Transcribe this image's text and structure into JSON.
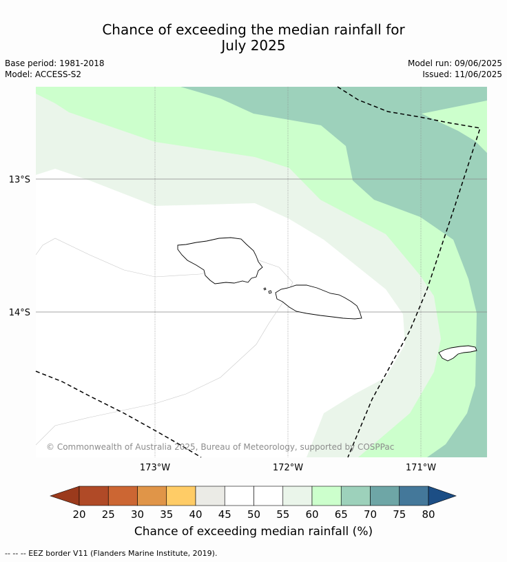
{
  "title": {
    "line1": "Chance of exceeding the median rainfall for",
    "line2": "July 2025"
  },
  "meta": {
    "base_period": "Base period: 1981-2018",
    "model": "Model: ACCESS-S2",
    "model_run": "Model run: 09/06/2025",
    "issued": "Issued: 11/06/2025"
  },
  "map": {
    "lat_labels": [
      "13°S",
      "14°S"
    ],
    "lon_labels": [
      "173°W",
      "172°W",
      "171°W"
    ],
    "copyright": "© Commonwealth of Australia 2025, Bureau of Meteorology, supported by COSPPac",
    "colors": {
      "c55_60": "#eaf5ea",
      "c60_65": "#ccffcc",
      "c65_70": "#9dd1bb",
      "background": "#ffffff"
    }
  },
  "colorbar": {
    "ticks": [
      "20",
      "25",
      "30",
      "35",
      "40",
      "45",
      "50",
      "55",
      "60",
      "65",
      "70",
      "75",
      "80"
    ],
    "colors": [
      "#b04a27",
      "#cc6633",
      "#e09548",
      "#ffcc66",
      "#ebebe6",
      "#ffffff",
      "#ffffff",
      "#eaf5ea",
      "#ccffcc",
      "#9dd1bb",
      "#6ea6a6",
      "#44789a"
    ],
    "under_color": "#9b3a1c",
    "over_color": "#1c4e85",
    "label": "Chance of exceeding median rainfall (%)"
  },
  "footnote": "--  --  -- EEZ border V11 (Flanders Marine Institute, 2019)."
}
